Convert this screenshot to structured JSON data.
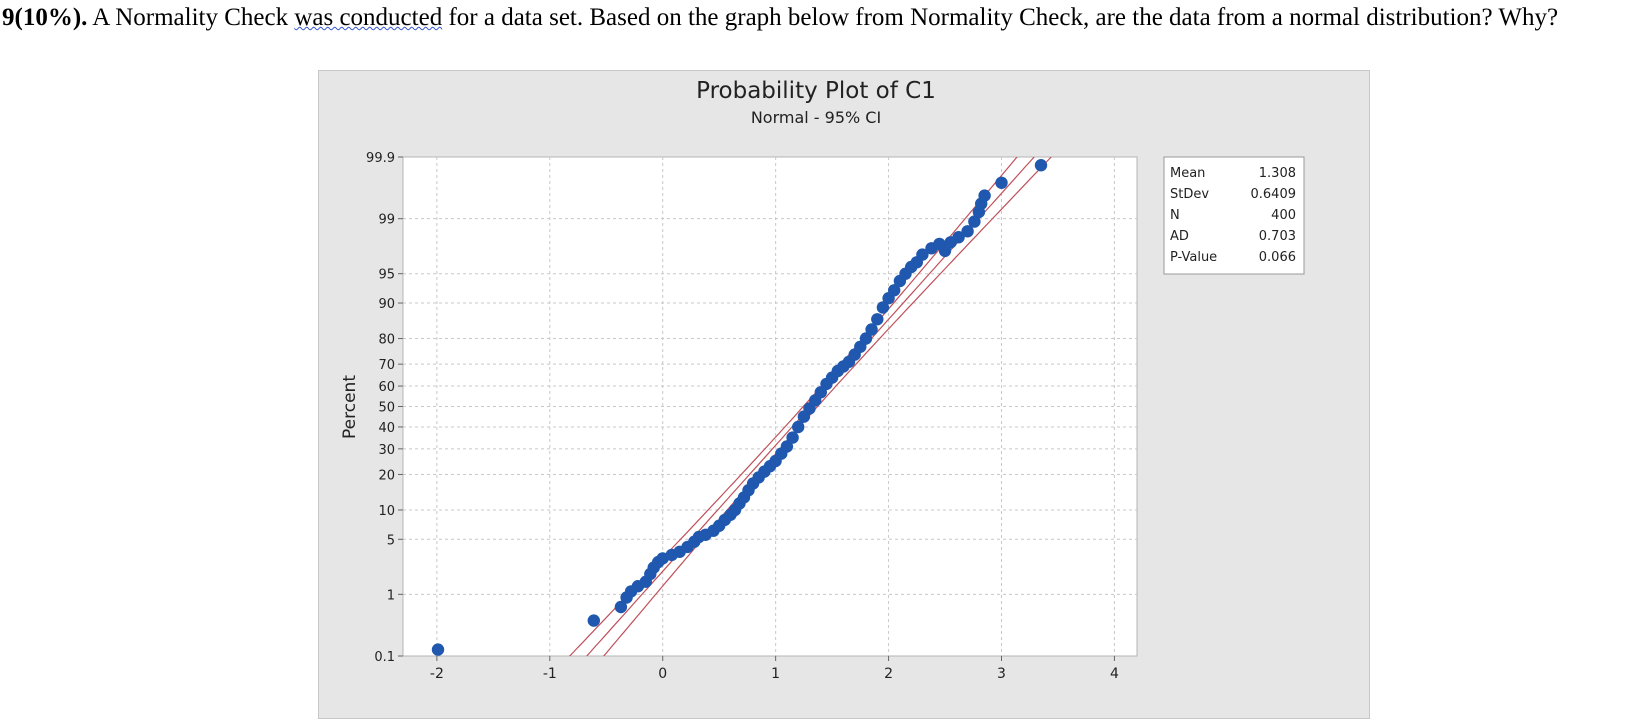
{
  "question": {
    "number": "9(10%).",
    "text_before": " A Normality Check ",
    "text_squiggle": "was conducted",
    "text_after": " for a data set. Based on the graph below from Normality Check, are the data from a normal distribution? Why?"
  },
  "chart_data": {
    "type": "scatter",
    "title": "Probability Plot of C1",
    "subtitle": "Normal - 95% CI",
    "xlabel": "",
    "ylabel": "Percent",
    "xlim": [
      -2.3,
      4.2
    ],
    "x_ticks": [
      "-2",
      "-1",
      "0",
      "1",
      "2",
      "3",
      "4"
    ],
    "y_scale": "normal-probability",
    "y_ticks": [
      "0.1",
      "1",
      "5",
      "10",
      "20",
      "30",
      "40",
      "50",
      "60",
      "70",
      "80",
      "90",
      "95",
      "99",
      "99.9"
    ],
    "grid": true,
    "fit": {
      "mean": 1.308,
      "stdev": 0.6409
    },
    "stats": [
      {
        "label": "Mean",
        "value": "1.308"
      },
      {
        "label": "StDev",
        "value": "0.6409"
      },
      {
        "label": "N",
        "value": "400"
      },
      {
        "label": "AD",
        "value": "0.703"
      },
      {
        "label": "P-Value",
        "value": "0.066"
      }
    ],
    "points": [
      {
        "x": -1.99,
        "y": 0.13
      },
      {
        "x": -0.61,
        "y": 0.4
      },
      {
        "x": -0.37,
        "y": 0.65
      },
      {
        "x": -0.32,
        "y": 0.9
      },
      {
        "x": -0.28,
        "y": 1.1
      },
      {
        "x": -0.22,
        "y": 1.3
      },
      {
        "x": -0.15,
        "y": 1.5
      },
      {
        "x": -0.11,
        "y": 1.9
      },
      {
        "x": -0.08,
        "y": 2.3
      },
      {
        "x": -0.04,
        "y": 2.7
      },
      {
        "x": 0.0,
        "y": 3.0
      },
      {
        "x": 0.08,
        "y": 3.3
      },
      {
        "x": 0.15,
        "y": 3.6
      },
      {
        "x": 0.22,
        "y": 4.1
      },
      {
        "x": 0.28,
        "y": 4.7
      },
      {
        "x": 0.32,
        "y": 5.3
      },
      {
        "x": 0.38,
        "y": 5.6
      },
      {
        "x": 0.45,
        "y": 6.2
      },
      {
        "x": 0.5,
        "y": 7.0
      },
      {
        "x": 0.55,
        "y": 8.0
      },
      {
        "x": 0.6,
        "y": 9.0
      },
      {
        "x": 0.64,
        "y": 10.0
      },
      {
        "x": 0.68,
        "y": 11.5
      },
      {
        "x": 0.72,
        "y": 13.0
      },
      {
        "x": 0.76,
        "y": 15.0
      },
      {
        "x": 0.8,
        "y": 17.0
      },
      {
        "x": 0.85,
        "y": 19.0
      },
      {
        "x": 0.9,
        "y": 21.0
      },
      {
        "x": 0.95,
        "y": 23.0
      },
      {
        "x": 1.0,
        "y": 25.0
      },
      {
        "x": 1.05,
        "y": 28.0
      },
      {
        "x": 1.1,
        "y": 31.0
      },
      {
        "x": 1.15,
        "y": 35.0
      },
      {
        "x": 1.2,
        "y": 40.0
      },
      {
        "x": 1.25,
        "y": 45.0
      },
      {
        "x": 1.3,
        "y": 49.0
      },
      {
        "x": 1.35,
        "y": 53.0
      },
      {
        "x": 1.4,
        "y": 57.0
      },
      {
        "x": 1.45,
        "y": 61.0
      },
      {
        "x": 1.5,
        "y": 64.0
      },
      {
        "x": 1.55,
        "y": 67.0
      },
      {
        "x": 1.6,
        "y": 69.0
      },
      {
        "x": 1.65,
        "y": 71.0
      },
      {
        "x": 1.7,
        "y": 74.0
      },
      {
        "x": 1.75,
        "y": 77.0
      },
      {
        "x": 1.8,
        "y": 80.0
      },
      {
        "x": 1.85,
        "y": 83.0
      },
      {
        "x": 1.9,
        "y": 86.0
      },
      {
        "x": 1.95,
        "y": 89.0
      },
      {
        "x": 2.0,
        "y": 91.0
      },
      {
        "x": 2.05,
        "y": 92.5
      },
      {
        "x": 2.1,
        "y": 94.0
      },
      {
        "x": 2.15,
        "y": 95.0
      },
      {
        "x": 2.2,
        "y": 95.8
      },
      {
        "x": 2.25,
        "y": 96.3
      },
      {
        "x": 2.3,
        "y": 97.0
      },
      {
        "x": 2.38,
        "y": 97.5
      },
      {
        "x": 2.45,
        "y": 97.8
      },
      {
        "x": 2.5,
        "y": 97.3
      },
      {
        "x": 2.55,
        "y": 97.9
      },
      {
        "x": 2.62,
        "y": 98.2
      },
      {
        "x": 2.7,
        "y": 98.5
      },
      {
        "x": 2.76,
        "y": 98.9
      },
      {
        "x": 2.8,
        "y": 99.2
      },
      {
        "x": 2.82,
        "y": 99.4
      },
      {
        "x": 2.85,
        "y": 99.55
      },
      {
        "x": 3.0,
        "y": 99.72
      },
      {
        "x": 3.35,
        "y": 99.86
      }
    ]
  }
}
